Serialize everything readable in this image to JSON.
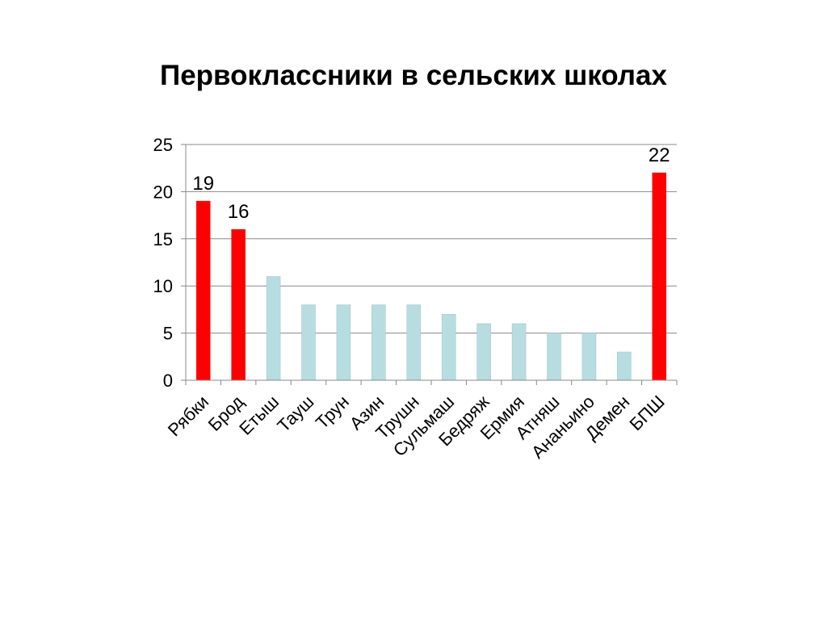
{
  "slide": {
    "title": "Первоклассники в сельских школах"
  },
  "chart_data": {
    "type": "bar",
    "categories": [
      "Рябки",
      "Брод",
      "Етыш",
      "Тауш",
      "Трун",
      "Азин",
      "Трушн",
      "Сульмаш",
      "Бедряж",
      "Ермия",
      "Атняш",
      "Ананьино",
      "Демен",
      "БПШ"
    ],
    "values": [
      19,
      16,
      11,
      8,
      8,
      8,
      8,
      7,
      6,
      6,
      5,
      5,
      3,
      22
    ],
    "highlight": [
      true,
      true,
      false,
      false,
      false,
      false,
      false,
      false,
      false,
      false,
      false,
      false,
      false,
      true
    ],
    "data_labels": [
      "19",
      "16",
      "",
      "",
      "",
      "",
      "",
      "",
      "",
      "",
      "",
      "",
      "",
      "22"
    ],
    "ylim": [
      0,
      25
    ],
    "yticks": [
      0,
      5,
      10,
      15,
      20,
      25
    ],
    "grid": true,
    "colors": {
      "highlight": "#ff0000",
      "normal": "#b7dde1",
      "normal_edge": "#9fc3c8",
      "grid": "#888888",
      "axis": "#888888"
    }
  }
}
